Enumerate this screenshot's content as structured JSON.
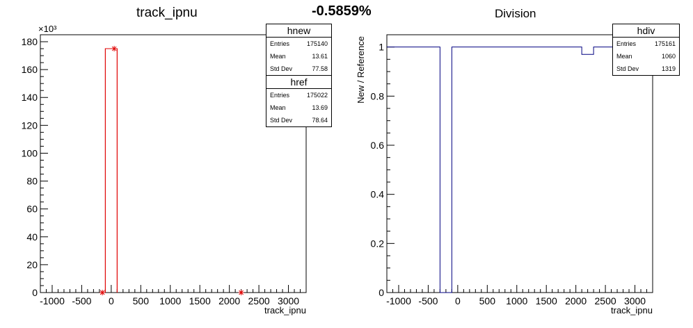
{
  "header": {
    "percent_label": "-0.5859%"
  },
  "left_panel": {
    "title": "track_ipnu",
    "xlabel": "track_ipnu",
    "y_exponent_label": "×10³",
    "stats_new": {
      "name": "hnew",
      "rows": [
        {
          "label": "Entries",
          "value": "175140"
        },
        {
          "label": "Mean",
          "value": "13.61"
        },
        {
          "label": "Std Dev",
          "value": "77.58"
        }
      ]
    },
    "stats_ref": {
      "name": "href",
      "rows": [
        {
          "label": "Entries",
          "value": "175022"
        },
        {
          "label": "Mean",
          "value": "13.69"
        },
        {
          "label": "Std Dev",
          "value": "78.64"
        }
      ]
    }
  },
  "right_panel": {
    "title": "Division",
    "xlabel": "track_ipnu",
    "ylabel": "New / Reference",
    "stats_div": {
      "name": "hdiv",
      "rows": [
        {
          "label": "Entries",
          "value": "175161"
        },
        {
          "label": "Mean",
          "value": "1060"
        },
        {
          "label": "Std Dev",
          "value": "1319"
        }
      ]
    }
  },
  "chart_data": [
    {
      "type": "histogram",
      "title": "track_ipnu",
      "xlabel": "track_ipnu",
      "xlim": [
        -1200,
        3300
      ],
      "ylim": [
        0,
        185
      ],
      "y_units": "×10³",
      "x_ticks": [
        -1000,
        -500,
        0,
        500,
        1000,
        1500,
        2000,
        2500,
        3000
      ],
      "y_ticks": [
        0,
        20,
        40,
        60,
        80,
        100,
        120,
        140,
        160,
        180
      ],
      "series": [
        {
          "name": "hnew",
          "color": "#e00000",
          "bins": [
            {
              "x0": -100,
              "x1": 100,
              "y": 175
            }
          ],
          "markers": [
            {
              "x": -150,
              "y": 0
            },
            {
              "x": 50,
              "y": 175
            },
            {
              "x": 2200,
              "y": 0
            }
          ]
        },
        {
          "name": "href",
          "color": "#e00000",
          "bins": [
            {
              "x0": -100,
              "x1": 100,
              "y": 175
            }
          ]
        }
      ]
    },
    {
      "type": "histogram",
      "title": "Division",
      "xlabel": "track_ipnu",
      "ylabel": "New / Reference",
      "xlim": [
        -1200,
        3300
      ],
      "ylim": [
        0,
        1.05
      ],
      "x_ticks": [
        -1000,
        -500,
        0,
        500,
        1000,
        1500,
        2000,
        2500,
        3000
      ],
      "y_ticks": [
        0,
        0.2,
        0.4,
        0.6,
        0.8,
        1
      ],
      "series": [
        {
          "name": "hdiv",
          "color": "#000080",
          "steps": [
            {
              "x0": -1200,
              "x1": -300,
              "y": 1
            },
            {
              "x0": -300,
              "x1": -100,
              "y": 0
            },
            {
              "x0": -100,
              "x1": 2100,
              "y": 1
            },
            {
              "x0": 2100,
              "x1": 2300,
              "y": 0.97
            },
            {
              "x0": 2300,
              "x1": 3300,
              "y": 1
            }
          ]
        }
      ]
    }
  ]
}
